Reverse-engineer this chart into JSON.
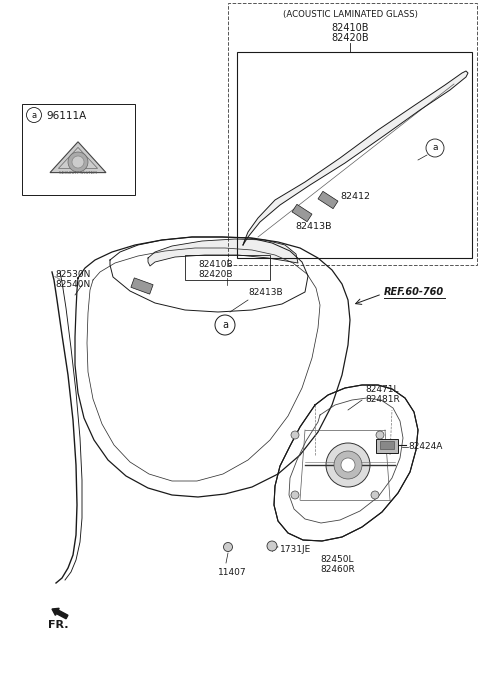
{
  "bg_color": "#ffffff",
  "line_color": "#1a1a1a",
  "figsize": [
    4.8,
    6.89
  ],
  "dpi": 100,
  "annotations": {
    "acoustic_title": "(ACOUSTIC LAMINATED GLASS)",
    "acoustic_parts1": "82410B",
    "acoustic_parts2": "82420B",
    "part_82412": "82412",
    "part_82413B_inset": "82413B",
    "part_82530N": "82530N",
    "part_82540N": "82540N",
    "part_82410B_main": "82410B",
    "part_82420B_main": "82420B",
    "part_82413B_main": "82413B",
    "part_ref": "REF.60-760",
    "part_82471": "82471L",
    "part_82481": "82481R",
    "part_82424A": "82424A",
    "part_1731JE": "1731JE",
    "part_82450": "82450L",
    "part_82460": "82460R",
    "part_11407": "11407",
    "part_96111A": "96111A",
    "label_a": "a",
    "label_fr": "FR."
  }
}
